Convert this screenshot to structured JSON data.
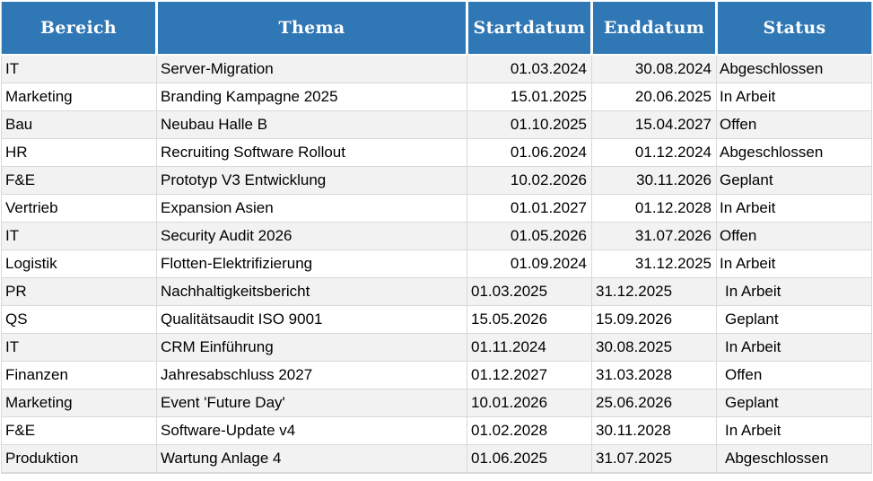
{
  "colors": {
    "header_bg": "#3077b5",
    "header_text": "#ffffff",
    "row_alt": "#f2f2f2",
    "grid": "#d9d9d9",
    "body_text": "#000000"
  },
  "table": {
    "columns": [
      "Bereich",
      "Thema",
      "Startdatum",
      "Enddatum",
      "Status"
    ],
    "rows": [
      [
        "IT",
        "Server-Migration",
        "01.03.2024",
        "30.08.2024",
        "Abgeschlossen"
      ],
      [
        "Marketing",
        "Branding Kampagne 2025",
        "15.01.2025",
        "20.06.2025",
        "In Arbeit"
      ],
      [
        "Bau",
        "Neubau Halle B",
        "01.10.2025",
        "15.04.2027",
        "Offen"
      ],
      [
        "HR",
        "Recruiting Software Rollout",
        "01.06.2024",
        "01.12.2024",
        "Abgeschlossen"
      ],
      [
        "F&E",
        "Prototyp V3 Entwicklung",
        "10.02.2026",
        "30.11.2026",
        "Geplant"
      ],
      [
        "Vertrieb",
        "Expansion Asien",
        "01.01.2027",
        "01.12.2028",
        "In Arbeit"
      ],
      [
        "IT",
        "Security Audit 2026",
        "01.05.2026",
        "31.07.2026",
        "Offen"
      ],
      [
        "Logistik",
        "Flotten-Elektrifizierung",
        "01.09.2024",
        "31.12.2025",
        "In Arbeit"
      ],
      [
        "PR",
        "Nachhaltigkeitsbericht",
        "01.03.2025",
        "31.12.2025",
        "In Arbeit"
      ],
      [
        "QS",
        "Qualitätsaudit ISO 9001",
        "15.05.2026",
        "15.09.2026",
        "Geplant"
      ],
      [
        "IT",
        "CRM Einführung",
        "01.11.2024",
        "30.08.2025",
        "In Arbeit"
      ],
      [
        "Finanzen",
        "Jahresabschluss 2027",
        "01.12.2027",
        "31.03.2028",
        "Offen"
      ],
      [
        "Marketing",
        "Event 'Future Day'",
        "10.01.2026",
        "25.06.2026",
        "Geplant"
      ],
      [
        "F&E",
        "Software-Update v4",
        "01.02.2028",
        "30.11.2028",
        "In Arbeit"
      ],
      [
        "Produktion",
        "Wartung Anlage 4",
        "01.06.2025",
        "31.07.2025",
        "Abgeschlossen"
      ]
    ]
  }
}
